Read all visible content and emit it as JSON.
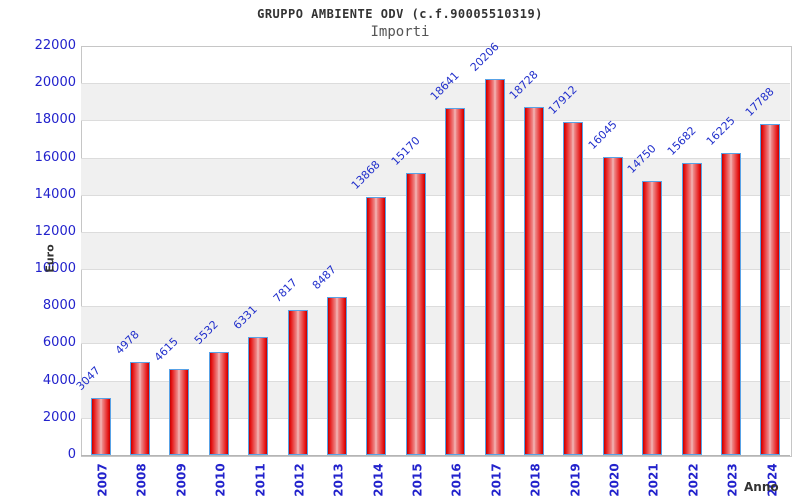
{
  "header": {
    "title": "GRUPPO AMBIENTE ODV (c.f.90005510319)",
    "subtitle": "Importi"
  },
  "axes": {
    "y_title": "Euro",
    "x_title": "Anno"
  },
  "colors": {
    "tick_label_blue": "#2222cc",
    "bar_border_blue": "#58a2e6",
    "bar_red_edge": "#bf0000",
    "bar_red_center": "#f4bcbc",
    "band_gray": "#f0f0f0",
    "gridline": "#dcdcdc",
    "title_text": "#333333"
  },
  "chart_data": {
    "type": "bar",
    "title": "GRUPPO AMBIENTE ODV (c.f.90005510319)",
    "subtitle": "Importi",
    "xlabel": "Anno",
    "ylabel": "Euro",
    "categories": [
      "2007",
      "2008",
      "2009",
      "2010",
      "2011",
      "2012",
      "2013",
      "2014",
      "2015",
      "2016",
      "2017",
      "2018",
      "2019",
      "2020",
      "2021",
      "2022",
      "2023",
      "2024"
    ],
    "values": [
      3047,
      4978,
      4615,
      5532,
      6331,
      7817,
      8487,
      13868,
      15170,
      18641,
      20206,
      18728,
      17912,
      16045,
      14750,
      15682,
      16225,
      17788
    ],
    "ylim": [
      0,
      22000
    ],
    "ytick_step": 2000,
    "ytick_labels": [
      "0",
      "2000",
      "4000",
      "6000",
      "8000",
      "10000",
      "12000",
      "14000",
      "16000",
      "18000",
      "20000",
      "22000"
    ],
    "grid": true,
    "background_bands": "alternating light-gray bands every 2000 starting below 20000",
    "legend_position": "none",
    "bar_style": "red cylinder gradient with light-blue outline, blue value labels rotated 45deg above bars"
  }
}
